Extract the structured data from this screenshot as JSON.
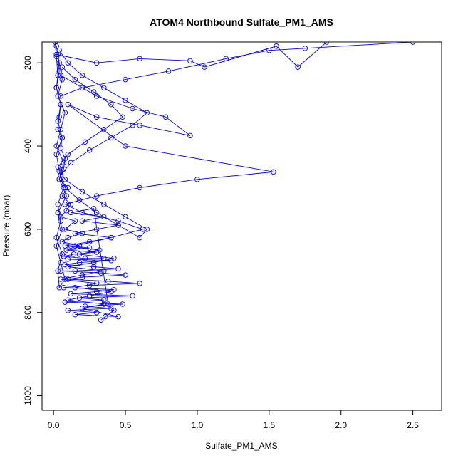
{
  "chart_data": {
    "type": "line",
    "title": "ATOM4 Northbound Sulfate_PM1_AMS",
    "xlabel": "Sulfate_PM1_AMS",
    "ylabel": "Pressure (mbar)",
    "xlim": [
      -0.08,
      2.7
    ],
    "ylim": [
      1035,
      150
    ],
    "y_reversed": true,
    "x_ticks": [
      0.0,
      0.5,
      1.0,
      1.5,
      2.0,
      2.5
    ],
    "x_tick_labels": [
      "0.0",
      "0.5",
      "1.0",
      "1.5",
      "2.0",
      "2.5"
    ],
    "y_ticks": [
      200,
      400,
      600,
      800,
      1000
    ],
    "y_tick_labels": [
      "200",
      "400",
      "600",
      "800",
      "1000"
    ],
    "grid": false,
    "legend": "none",
    "color": "#0000ff",
    "series": [
      {
        "x": [
          0.01,
          0.02,
          0.03,
          0.02,
          0.05,
          0.04,
          0.03,
          0.06,
          0.05,
          0.08,
          0.07,
          0.04,
          0.1,
          0.06,
          0.12,
          0.09,
          0.05,
          0.15,
          0.08,
          0.2,
          0.1,
          0.06,
          0.18,
          0.12,
          0.25,
          0.09,
          0.3,
          0.14,
          0.07,
          0.22,
          0.35,
          0.1,
          0.4,
          0.18,
          0.08,
          0.28,
          0.45,
          0.15,
          0.05,
          0.33,
          0.5,
          0.2,
          0.1,
          0.38,
          0.6,
          0.25,
          0.07,
          0.42,
          0.3,
          0.12,
          0.55,
          0.18,
          0.35,
          0.08,
          0.48,
          0.22,
          0.4,
          0.1,
          0.3,
          0.15,
          0.45,
          0.2,
          0.35,
          0.1,
          0.25,
          0.4,
          0.15,
          0.3,
          0.05,
          0.2,
          0.35,
          0.1,
          0.28,
          0.42,
          0.18,
          0.32,
          0.08,
          0.25,
          0.4,
          0.15,
          0.3,
          0.45,
          0.2,
          0.35,
          0.12,
          0.28,
          0.38,
          0.42,
          0.36,
          0.33
        ],
        "y": [
          150,
          185,
          230,
          260,
          300,
          330,
          360,
          380,
          405,
          430,
          455,
          480,
          500,
          520,
          540,
          555,
          570,
          580,
          600,
          610,
          620,
          630,
          640,
          640,
          645,
          650,
          655,
          660,
          665,
          670,
          670,
          672,
          675,
          680,
          685,
          690,
          695,
          700,
          700,
          705,
          710,
          715,
          720,
          725,
          730,
          735,
          740,
          745,
          750,
          755,
          760,
          765,
          770,
          775,
          780,
          785,
          790,
          795,
          800,
          805,
          810,
          790,
          780,
          770,
          760,
          750,
          740,
          730,
          720,
          710,
          700,
          690,
          680,
          670,
          660,
          650,
          640,
          630,
          620,
          610,
          600,
          590,
          580,
          570,
          560,
          550,
          780,
          795,
          810,
          818
        ]
      },
      {
        "x": [
          0.04,
          0.1,
          0.2,
          0.35,
          0.5,
          0.65,
          0.55,
          0.4,
          0.25,
          0.12,
          0.05,
          0.08,
          0.18,
          0.3,
          0.45,
          0.6,
          0.65,
          0.5,
          0.35,
          0.2,
          0.08,
          0.03,
          0.1,
          0.22,
          0.35,
          0.48,
          0.4,
          0.28,
          0.15,
          0.06
        ],
        "y": [
          170,
          200,
          230,
          260,
          290,
          320,
          350,
          380,
          410,
          440,
          470,
          500,
          530,
          560,
          590,
          620,
          600,
          570,
          540,
          510,
          480,
          450,
          420,
          390,
          360,
          330,
          300,
          270,
          240,
          210
        ]
      },
      {
        "x": [
          0.02,
          0.3,
          0.6,
          0.95,
          1.05,
          1.55,
          1.7,
          1.9,
          2.5,
          1.75,
          1.5,
          1.2,
          0.8,
          0.5,
          0.2,
          0.05
        ],
        "y": [
          180,
          200,
          190,
          195,
          210,
          160,
          210,
          150,
          150,
          165,
          170,
          190,
          220,
          240,
          260,
          280
        ]
      },
      {
        "x": [
          0.05,
          0.3,
          0.55,
          0.78,
          0.95,
          0.6,
          0.3,
          0.1,
          0.5,
          1.53,
          1.0,
          0.6,
          0.3,
          0.08,
          0.2,
          0.45,
          0.62,
          0.4,
          0.15
        ],
        "y": [
          230,
          280,
          310,
          330,
          375,
          350,
          330,
          300,
          400,
          462,
          480,
          500,
          520,
          540,
          560,
          580,
          600,
          620,
          640
        ]
      },
      {
        "x": [
          0.02,
          0.04,
          0.06,
          0.03,
          0.08,
          0.05,
          0.02,
          0.07,
          0.04,
          0.09,
          0.03,
          0.06,
          0.02,
          0.05,
          0.08,
          0.04,
          0.03,
          0.06,
          0.02,
          0.05,
          0.03,
          0.07,
          0.04,
          0.02,
          0.06,
          0.03,
          0.05,
          0.02,
          0.04,
          0.03
        ],
        "y": [
          160,
          200,
          240,
          280,
          320,
          360,
          400,
          440,
          480,
          520,
          560,
          600,
          640,
          680,
          720,
          740,
          700,
          660,
          620,
          580,
          540,
          500,
          460,
          420,
          380,
          340,
          300,
          260,
          220,
          180
        ]
      }
    ]
  }
}
